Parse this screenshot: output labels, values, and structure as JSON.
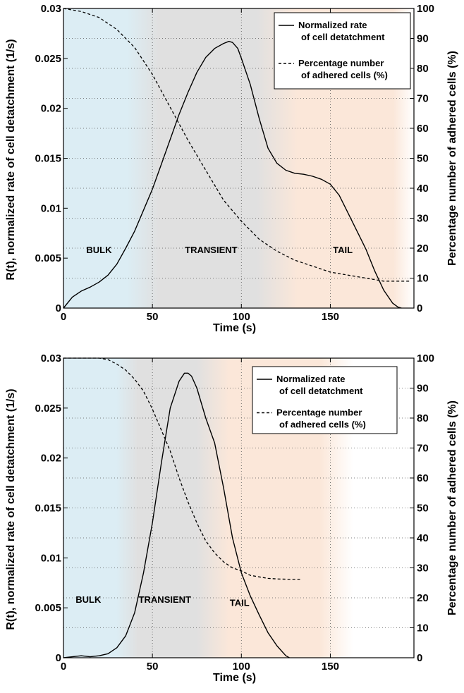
{
  "chart_data": [
    {
      "type": "line",
      "xlabel": "Time (s)",
      "ylabel": "R(t), normalized rate of cell detatchment (1/s)",
      "y2label": "Percentage number of adhered cells (%)",
      "xlim": [
        0,
        197
      ],
      "ylim": [
        0,
        0.03
      ],
      "y2lim": [
        0,
        100
      ],
      "xticks": [
        "0",
        "50",
        "100",
        "150"
      ],
      "yticks": [
        "0",
        "0.005",
        "0.01",
        "0.015",
        "0.02",
        "0.025",
        "0.03"
      ],
      "y2ticks": [
        "0",
        "10",
        "20",
        "30",
        "40",
        "50",
        "60",
        "70",
        "80",
        "90",
        "100"
      ],
      "grid": true,
      "legend_position": "top-right",
      "legend": [
        "Normalized rate\nof cell detatchment",
        "Percentage number\nof adhered cells (%)"
      ],
      "phase_labels": [
        {
          "text": "BULK",
          "x": 20,
          "y": 0.0055
        },
        {
          "text": "TRANSIENT",
          "x": 83,
          "y": 0.0055
        },
        {
          "text": "TAIL",
          "x": 157,
          "y": 0.0055
        }
      ],
      "phase_bands": [
        {
          "name": "bulk",
          "from": 0,
          "to": 42,
          "color": "#dcedf4"
        },
        {
          "name": "transient",
          "from": 42,
          "to": 120,
          "color": "#e0e0e0"
        },
        {
          "name": "tail",
          "from": 120,
          "to": 197,
          "color": "#fbe7d9"
        }
      ],
      "series": [
        {
          "name": "Normalized rate of cell detatchment",
          "axis": "left",
          "style": "solid",
          "x": [
            0,
            5,
            10,
            15,
            20,
            25,
            30,
            35,
            40,
            45,
            50,
            55,
            60,
            65,
            70,
            75,
            80,
            85,
            90,
            93,
            95,
            98,
            100,
            105,
            110,
            115,
            120,
            125,
            130,
            135,
            140,
            145,
            150,
            155,
            160,
            165,
            170,
            175,
            180,
            185,
            188,
            190
          ],
          "y": [
            0,
            0.0011,
            0.0017,
            0.0021,
            0.0026,
            0.0033,
            0.0044,
            0.006,
            0.0077,
            0.0098,
            0.0119,
            0.0144,
            0.0169,
            0.0194,
            0.0216,
            0.0236,
            0.0251,
            0.026,
            0.0265,
            0.0267,
            0.0266,
            0.026,
            0.025,
            0.0224,
            0.019,
            0.016,
            0.0145,
            0.0138,
            0.0135,
            0.0134,
            0.0132,
            0.0129,
            0.0124,
            0.0113,
            0.0095,
            0.0077,
            0.0059,
            0.0037,
            0.0018,
            0.0005,
            0.0001,
            0
          ]
        },
        {
          "name": "Percentage number of adhered cells (%)",
          "axis": "right",
          "style": "dashed",
          "x": [
            0,
            10,
            20,
            30,
            40,
            50,
            60,
            70,
            80,
            90,
            100,
            110,
            120,
            130,
            140,
            150,
            160,
            170,
            180,
            190,
            195
          ],
          "y": [
            100,
            99,
            97,
            93,
            87,
            78,
            67,
            56,
            46,
            36,
            29,
            23,
            19,
            16,
            14,
            12,
            11,
            10,
            9,
            9,
            9
          ]
        }
      ]
    },
    {
      "type": "line",
      "xlabel": "Time (s)",
      "ylabel": "R(t), normalized rate of cell detatchment (1/s)",
      "y2label": "Percentage number of adhered cells (%)",
      "xlim": [
        0,
        197
      ],
      "ylim": [
        0,
        0.03
      ],
      "y2lim": [
        0,
        100
      ],
      "xticks": [
        "0",
        "50",
        "100",
        "150"
      ],
      "yticks": [
        "0",
        "0.005",
        "0.01",
        "0.015",
        "0.02",
        "0.025",
        "0.03"
      ],
      "y2ticks": [
        "0",
        "10",
        "20",
        "30",
        "40",
        "50",
        "60",
        "70",
        "80",
        "90",
        "100"
      ],
      "grid": true,
      "legend_position": "top-right",
      "legend": [
        "Normalized rate\nof cell detatchment",
        "Percentage number\nof adhered cells (%)"
      ],
      "phase_labels": [
        {
          "text": "BULK",
          "x": 14,
          "y": 0.0055
        },
        {
          "text": "TRANSIENT",
          "x": 57,
          "y": 0.0055
        },
        {
          "text": "TAIL",
          "x": 99,
          "y": 0.0052
        }
      ],
      "phase_bands": [
        {
          "name": "bulk",
          "from": 0,
          "to": 35,
          "color": "#dcedf4"
        },
        {
          "name": "transient",
          "from": 35,
          "to": 82,
          "color": "#e0e0e0"
        },
        {
          "name": "tail",
          "from": 82,
          "to": 155,
          "color": "#fbe7d9"
        }
      ],
      "series": [
        {
          "name": "Normalized rate of cell detatchment",
          "axis": "left",
          "style": "solid",
          "x": [
            0,
            5,
            10,
            15,
            20,
            25,
            30,
            35,
            40,
            45,
            50,
            55,
            60,
            65,
            68,
            70,
            72,
            75,
            80,
            85,
            90,
            95,
            100,
            105,
            110,
            115,
            120,
            125,
            127
          ],
          "y": [
            0,
            0.0001,
            0.0002,
            0.0001,
            0.0002,
            0.0004,
            0.001,
            0.0022,
            0.0045,
            0.0085,
            0.0135,
            0.0195,
            0.025,
            0.0277,
            0.0285,
            0.0285,
            0.0282,
            0.027,
            0.024,
            0.0215,
            0.017,
            0.012,
            0.0085,
            0.0062,
            0.0043,
            0.0025,
            0.0012,
            0.0002,
            0
          ]
        },
        {
          "name": "Percentage number of adhered cells (%)",
          "axis": "right",
          "style": "dashed",
          "x": [
            0,
            10,
            20,
            25,
            30,
            35,
            40,
            45,
            50,
            55,
            60,
            65,
            70,
            75,
            80,
            85,
            90,
            95,
            100,
            105,
            110,
            115,
            120,
            125,
            130,
            133
          ],
          "y": [
            100,
            100,
            100,
            99.5,
            98,
            96,
            93,
            89,
            83,
            76,
            69,
            60,
            52,
            45,
            39,
            35,
            32,
            30,
            29,
            27.5,
            27,
            26.5,
            26.3,
            26.2,
            26.2,
            26.2
          ]
        }
      ]
    }
  ]
}
